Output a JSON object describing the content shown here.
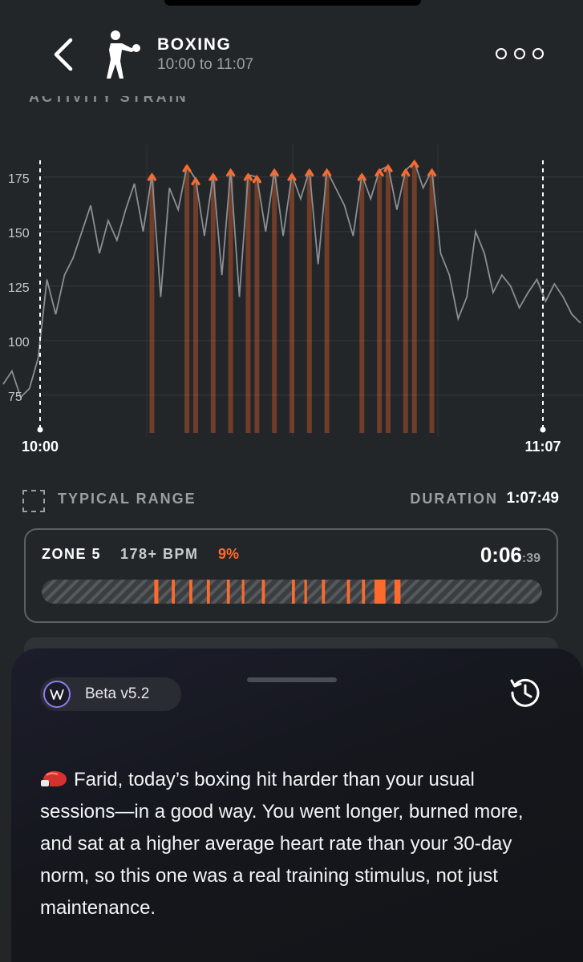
{
  "header": {
    "title": "BOXING",
    "subtitle": "10:00 to 11:07"
  },
  "section_label": "ACTIVITY STRAIN",
  "chart_data": {
    "type": "line",
    "series": [
      {
        "values": [
          80,
          86,
          74,
          78,
          92,
          128,
          112,
          130,
          138,
          150,
          162,
          140,
          155,
          146,
          160,
          172,
          150,
          176,
          120,
          170,
          160,
          180,
          174,
          148,
          176,
          130,
          178,
          120,
          176,
          175,
          150,
          178,
          148,
          176,
          165,
          178,
          135,
          178,
          170,
          162,
          148,
          176,
          165,
          178,
          180,
          160,
          178,
          182,
          170,
          178,
          140,
          130,
          110,
          120,
          150,
          140,
          122,
          130,
          125,
          115,
          122,
          128,
          118,
          126,
          120,
          112,
          108
        ]
      }
    ],
    "zone5_threshold": 178,
    "yticks": [
      75,
      100,
      125,
      150,
      175
    ],
    "ylim": [
      65,
      190
    ],
    "x_labels": [
      "10:00",
      "11:07"
    ],
    "grid": true
  },
  "legend": {
    "typical_range": "TYPICAL RANGE",
    "duration_label": "DURATION",
    "duration_value": "1:07:49"
  },
  "zone": {
    "name": "ZONE 5",
    "bpm": "178+ BPM",
    "percent": "9%",
    "time_main": "0:06",
    "time_sub": ":39",
    "segments": [
      [
        0.225,
        0.008
      ],
      [
        0.26,
        0.006
      ],
      [
        0.295,
        0.006
      ],
      [
        0.33,
        0.006
      ],
      [
        0.37,
        0.006
      ],
      [
        0.4,
        0.005
      ],
      [
        0.44,
        0.006
      ],
      [
        0.5,
        0.006
      ],
      [
        0.525,
        0.005
      ],
      [
        0.56,
        0.006
      ],
      [
        0.61,
        0.006
      ],
      [
        0.64,
        0.006
      ],
      [
        0.665,
        0.022
      ],
      [
        0.705,
        0.012
      ]
    ],
    "accent": "#ff6a2c"
  },
  "coach": {
    "version": "Beta v5.2",
    "message": "Farid, today’s boxing hit harder than your usual sessions—in a good way. You went longer, burned more, and sat at a higher average heart rate than your 30-day norm, so this one was a real training stimulus, not just maintenance."
  }
}
